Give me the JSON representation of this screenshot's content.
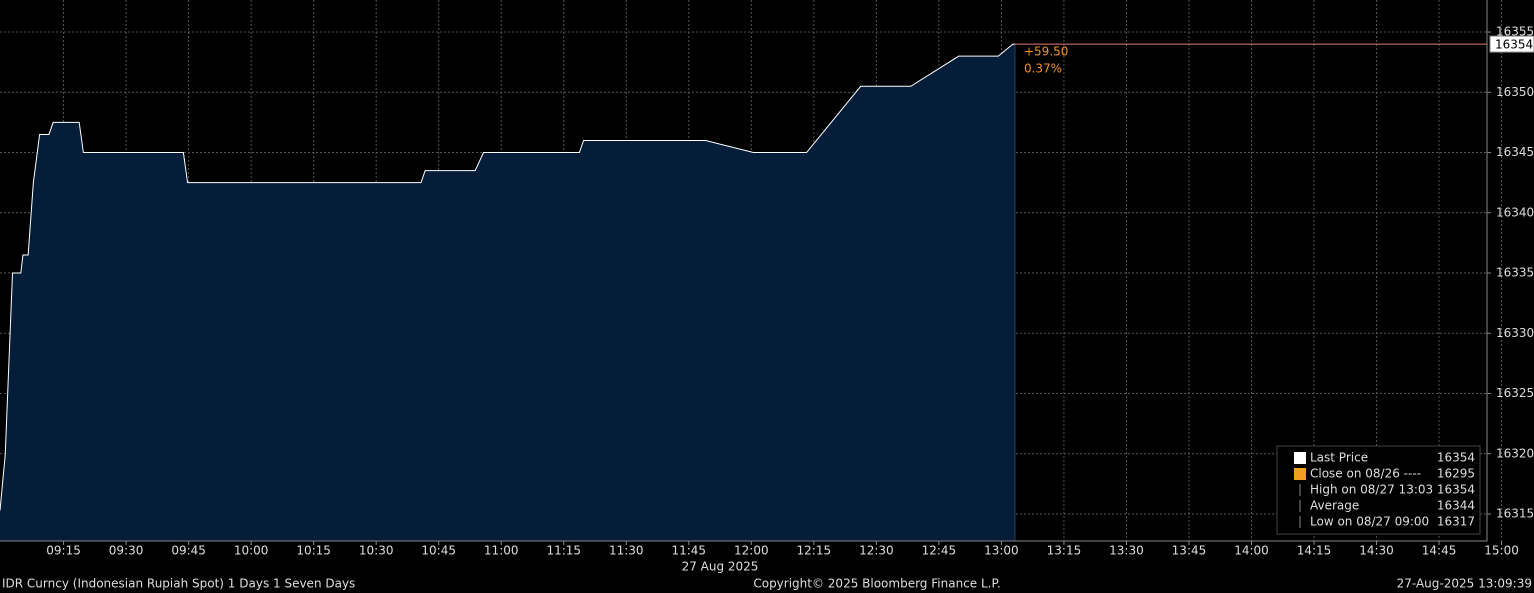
{
  "chart_data": {
    "type": "area",
    "x_date_label": "27 Aug 2025",
    "xlim": [
      539.75,
      896.5
    ],
    "xticks": [
      {
        "value": 555,
        "label": "09:15"
      },
      {
        "value": 570,
        "label": "09:30"
      },
      {
        "value": 585,
        "label": "09:45"
      },
      {
        "value": 600,
        "label": "10:00"
      },
      {
        "value": 615,
        "label": "10:15"
      },
      {
        "value": 630,
        "label": "10:30"
      },
      {
        "value": 645,
        "label": "10:45"
      },
      {
        "value": 660,
        "label": "11:00"
      },
      {
        "value": 675,
        "label": "11:15"
      },
      {
        "value": 690,
        "label": "11:30"
      },
      {
        "value": 705,
        "label": "11:45"
      },
      {
        "value": 720,
        "label": "12:00"
      },
      {
        "value": 735,
        "label": "12:15"
      },
      {
        "value": 750,
        "label": "12:30"
      },
      {
        "value": 765,
        "label": "12:45"
      },
      {
        "value": 780,
        "label": "13:00"
      },
      {
        "value": 795,
        "label": "13:15"
      },
      {
        "value": 810,
        "label": "13:30"
      },
      {
        "value": 825,
        "label": "13:45"
      },
      {
        "value": 840,
        "label": "14:00"
      },
      {
        "value": 855,
        "label": "14:15"
      },
      {
        "value": 870,
        "label": "14:30"
      },
      {
        "value": 885,
        "label": "14:45"
      },
      {
        "value": 900,
        "label": "15:00"
      }
    ],
    "ylim": [
      16312.76,
      16357.66
    ],
    "yticks": [
      16315,
      16320,
      16325,
      16330,
      16335,
      16340,
      16345,
      16350,
      16355
    ],
    "grid": true,
    "x": [
      539.75,
      541,
      542.75,
      544.75,
      545.25,
      546.5,
      547.75,
      549.25,
      551.5,
      552.5,
      558.75,
      559.75,
      583.75,
      584.75,
      640.75,
      641.75,
      653.75,
      655.75,
      678.75,
      679.75,
      709,
      720.5,
      733.25,
      746.25,
      758.25,
      769.75,
      779.25,
      782.75,
      783.25
    ],
    "series": [
      {
        "name": "Last Price",
        "color": "#ffffff",
        "fill": "#061d3a",
        "values": [
          16315.3,
          16319.9,
          16335,
          16335,
          16336.5,
          16336.5,
          16342.5,
          16346.5,
          16346.5,
          16347.5,
          16347.5,
          16345,
          16345,
          16342.5,
          16342.5,
          16343.5,
          16343.5,
          16345,
          16345,
          16346,
          16346,
          16345,
          16345,
          16350.5,
          16350.5,
          16353,
          16353,
          16354,
          16354
        ]
      }
    ],
    "last_value": 16354,
    "last_line_color": "#e0806e",
    "change": "+59.50",
    "change_pct": "0.37%",
    "annotation_color": "#f0922b",
    "legend_items": [
      {
        "label": "Last Price",
        "value": 16354,
        "color": "#ffffff"
      },
      {
        "label": "Close on 08/26 ----",
        "value": 16295,
        "color": "#f0a020"
      },
      {
        "label": "High on 08/27 13:03",
        "value": 16354
      },
      {
        "label": "Average",
        "value": 16344
      },
      {
        "label": "Low on 08/27 09:00",
        "value": 16317
      }
    ],
    "footer_left": "IDR Curncy (Indonesian Rupiah Spot) 1 Days 1 Seven Days",
    "footer_center": "Copyright© 2025 Bloomberg Finance L.P.",
    "footer_right": "27-Aug-2025 13:09:39"
  }
}
